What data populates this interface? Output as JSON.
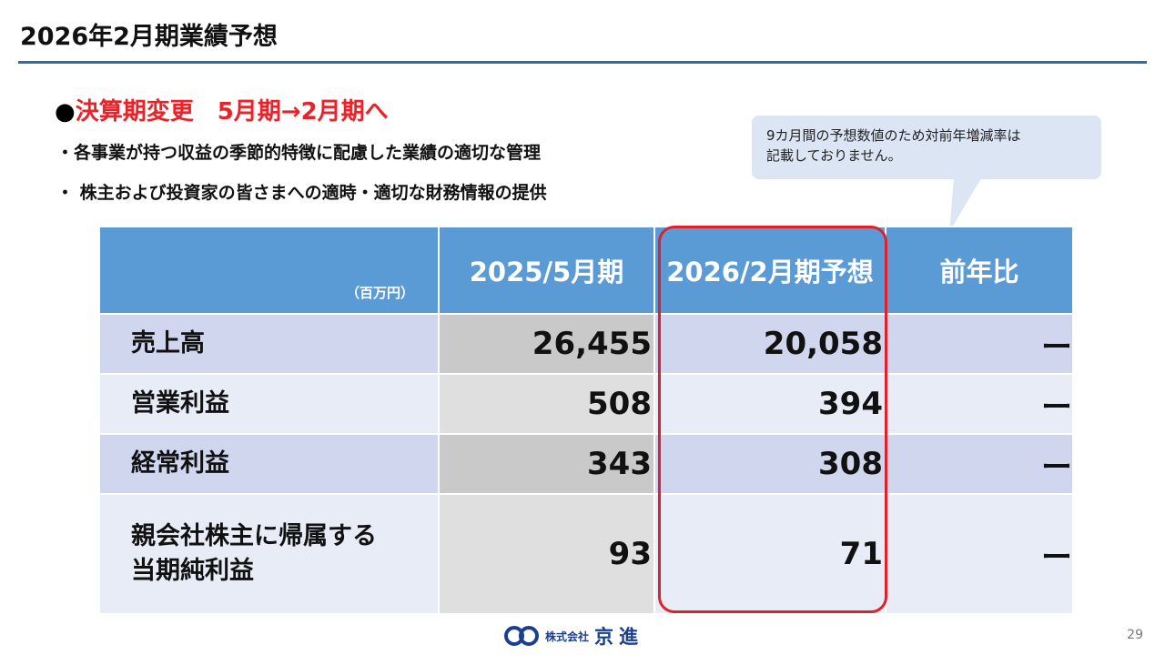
{
  "slide": {
    "title": "2026年2月期業績予想",
    "page_number": "29"
  },
  "heading": {
    "bullet": "●",
    "text": "決算期変更　5月期→2月期へ"
  },
  "bullets": [
    "・各事業が持つ収益の季節的特徴に配慮した業績の適切な管理",
    "・ 株主および投資家の皆さまへの適時・適切な財務情報の提供"
  ],
  "callout": {
    "line1": "9カ月間の予想数値のため対前年増減率は",
    "line2": "記載しておりません。"
  },
  "table": {
    "unit": "（百万円）",
    "headers": [
      "2025/5月期",
      "2026/2月期予想",
      "前年比"
    ],
    "rows": [
      {
        "label_line1": "売上高",
        "label_line2": "",
        "fy2025": "26,455",
        "fy2026": "20,058",
        "yoy": "ー"
      },
      {
        "label_line1": "営業利益",
        "label_line2": "",
        "fy2025": "508",
        "fy2026": "394",
        "yoy": "ー"
      },
      {
        "label_line1": "経常利益",
        "label_line2": "",
        "fy2025": "343",
        "fy2026": "308",
        "yoy": "ー"
      },
      {
        "label_line1": "親会社株主に帰属する",
        "label_line2": "当期純利益",
        "fy2025": "93",
        "fy2026": "71",
        "yoy": "ー"
      }
    ]
  },
  "logo": {
    "small": "株式会社",
    "big": "京進"
  },
  "colors": {
    "title_rule": "#2a6f9e",
    "accent_red": "#e8232a",
    "table_header": "#5b9bd5"
  }
}
